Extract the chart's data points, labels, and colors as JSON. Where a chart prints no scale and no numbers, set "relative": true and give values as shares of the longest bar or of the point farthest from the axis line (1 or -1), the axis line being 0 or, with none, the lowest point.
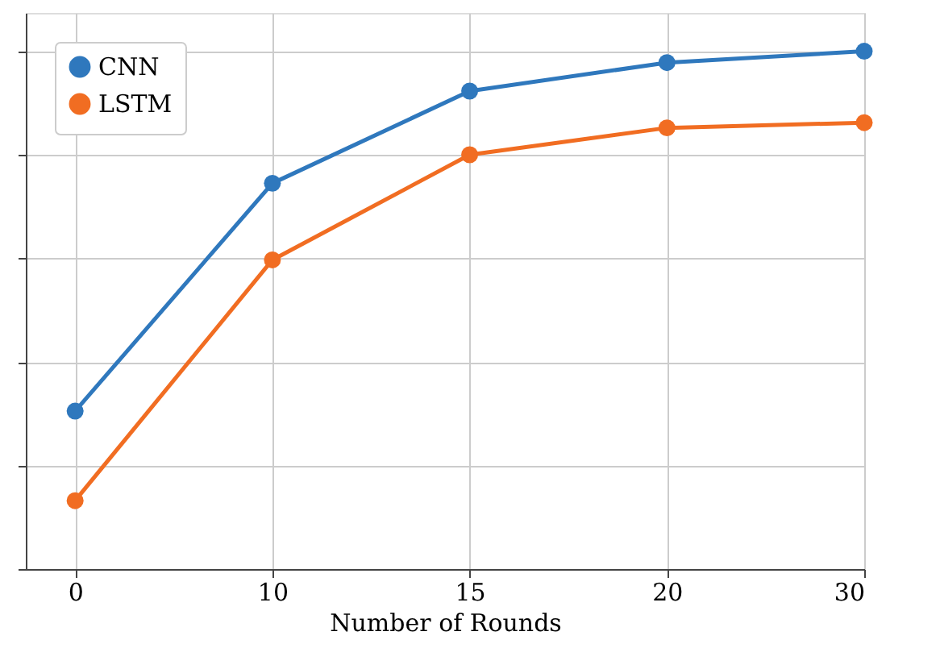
{
  "chart_data": {
    "type": "line",
    "xlabel": "Number of Rounds",
    "categories": [
      "0",
      "10",
      "15",
      "20",
      "30"
    ],
    "relative": true,
    "grid": true,
    "legend": "top left",
    "marker": "circle",
    "line_style": "solid",
    "series": [
      {
        "name": "CNN",
        "color": "#2f78bd",
        "values": [
          0.305,
          0.745,
          0.923,
          0.978,
          1
        ]
      },
      {
        "name": "LSTM",
        "color": "#f16d22",
        "values": [
          0.132,
          0.597,
          0.8,
          0.852,
          0.862
        ]
      }
    ]
  }
}
